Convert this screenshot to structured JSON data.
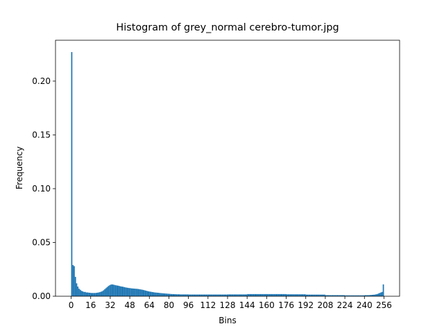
{
  "chart_data": {
    "type": "histogram",
    "title": "Histogram of grey_normal cerebro-tumor.jpg",
    "x_label": "Bins",
    "y_label": "Frequency",
    "color": "#1f77b4",
    "bins": [
      0,
      1,
      2,
      3,
      4,
      5,
      6,
      7,
      8,
      9,
      10,
      11,
      12,
      13,
      14,
      15,
      16,
      17,
      18,
      19,
      20,
      21,
      22,
      23,
      24,
      25,
      26,
      27,
      28,
      29,
      30,
      31,
      32,
      33,
      34,
      35,
      36,
      37,
      38,
      39,
      40,
      41,
      42,
      43,
      44,
      45,
      46,
      47,
      48,
      49,
      50,
      51,
      52,
      53,
      54,
      55,
      56,
      57,
      58,
      59,
      60,
      61,
      62,
      63,
      64,
      65,
      66,
      67,
      68,
      69,
      70,
      71,
      72,
      73,
      74,
      75,
      76,
      77,
      78,
      79,
      80,
      81,
      82,
      83,
      84,
      85,
      86,
      87,
      88,
      89,
      90,
      91,
      92,
      93,
      94,
      95,
      96,
      97,
      98,
      99,
      100,
      101,
      102,
      103,
      104,
      105,
      106,
      107,
      108,
      109,
      110,
      111,
      112,
      113,
      114,
      115,
      116,
      117,
      118,
      119,
      120,
      121,
      122,
      123,
      124,
      125,
      126,
      127,
      128,
      129,
      130,
      131,
      132,
      133,
      134,
      135,
      136,
      137,
      138,
      139,
      140,
      141,
      142,
      143,
      144,
      145,
      146,
      147,
      148,
      149,
      150,
      151,
      152,
      153,
      154,
      155,
      156,
      157,
      158,
      159,
      160,
      161,
      162,
      163,
      164,
      165,
      166,
      167,
      168,
      169,
      170,
      171,
      172,
      173,
      174,
      175,
      176,
      177,
      178,
      179,
      180,
      181,
      182,
      183,
      184,
      185,
      186,
      187,
      188,
      189,
      190,
      191,
      192,
      193,
      194,
      195,
      196,
      197,
      198,
      199,
      200,
      201,
      202,
      203,
      204,
      205,
      206,
      207,
      208,
      209,
      210,
      211,
      212,
      213,
      214,
      215,
      216,
      217,
      218,
      219,
      220,
      221,
      222,
      223,
      224,
      225,
      226,
      227,
      228,
      229,
      230,
      231,
      232,
      233,
      234,
      235,
      236,
      237,
      238,
      239,
      240,
      241,
      242,
      243,
      244,
      245,
      246,
      247,
      248,
      249,
      250,
      251,
      252,
      253,
      254,
      255,
      256
    ],
    "values": [
      0.227,
      0.029,
      0.028,
      0.018,
      0.012,
      0.009,
      0.007,
      0.006,
      0.005,
      0.0045,
      0.004,
      0.004,
      0.0035,
      0.0035,
      0.0033,
      0.0032,
      0.003,
      0.003,
      0.003,
      0.003,
      0.0031,
      0.0033,
      0.0035,
      0.0038,
      0.0042,
      0.0047,
      0.0055,
      0.0065,
      0.0075,
      0.0085,
      0.0095,
      0.0102,
      0.0108,
      0.011,
      0.0108,
      0.0105,
      0.0102,
      0.01,
      0.0098,
      0.0095,
      0.0092,
      0.009,
      0.0088,
      0.0085,
      0.0082,
      0.008,
      0.0078,
      0.0076,
      0.0075,
      0.0073,
      0.0072,
      0.0071,
      0.007,
      0.0069,
      0.0068,
      0.0066,
      0.0064,
      0.0062,
      0.006,
      0.0057,
      0.0054,
      0.0051,
      0.0048,
      0.0045,
      0.0043,
      0.0041,
      0.0039,
      0.0037,
      0.0035,
      0.0034,
      0.0033,
      0.0032,
      0.003,
      0.0029,
      0.0028,
      0.0027,
      0.0026,
      0.0025,
      0.0024,
      0.0023,
      0.0022,
      0.0021,
      0.002,
      0.002,
      0.0019,
      0.0019,
      0.0018,
      0.0018,
      0.0018,
      0.0017,
      0.0017,
      0.0017,
      0.0017,
      0.0017,
      0.0017,
      0.0017,
      0.0016,
      0.0016,
      0.0016,
      0.0016,
      0.0016,
      0.0016,
      0.0016,
      0.0016,
      0.0016,
      0.0016,
      0.0016,
      0.0016,
      0.0016,
      0.0016,
      0.0016,
      0.0016,
      0.0016,
      0.0016,
      0.0016,
      0.0016,
      0.0016,
      0.0016,
      0.0016,
      0.0016,
      0.0016,
      0.0016,
      0.0016,
      0.0016,
      0.0016,
      0.0016,
      0.0016,
      0.0016,
      0.0017,
      0.0017,
      0.0017,
      0.0017,
      0.0017,
      0.0017,
      0.0017,
      0.0017,
      0.0017,
      0.0017,
      0.0017,
      0.0017,
      0.0017,
      0.0017,
      0.0017,
      0.0017,
      0.002,
      0.002,
      0.002,
      0.002,
      0.002,
      0.002,
      0.002,
      0.002,
      0.002,
      0.002,
      0.002,
      0.002,
      0.002,
      0.002,
      0.002,
      0.002,
      0.002,
      0.002,
      0.002,
      0.002,
      0.002,
      0.002,
      0.002,
      0.002,
      0.002,
      0.002,
      0.002,
      0.002,
      0.002,
      0.002,
      0.002,
      0.002,
      0.0018,
      0.0018,
      0.0018,
      0.0018,
      0.0018,
      0.0018,
      0.0018,
      0.0018,
      0.0018,
      0.0018,
      0.0018,
      0.0018,
      0.0018,
      0.0018,
      0.0018,
      0.0018,
      0.0015,
      0.0015,
      0.0015,
      0.0015,
      0.0015,
      0.0015,
      0.0015,
      0.0015,
      0.0015,
      0.0015,
      0.0015,
      0.0015,
      0.0015,
      0.0015,
      0.0015,
      0.0015,
      0.001,
      0.001,
      0.001,
      0.001,
      0.001,
      0.001,
      0.001,
      0.001,
      0.001,
      0.001,
      0.001,
      0.001,
      0.001,
      0.001,
      0.001,
      0.001,
      0.0008,
      0.0008,
      0.0008,
      0.0008,
      0.0008,
      0.0008,
      0.0008,
      0.0008,
      0.0008,
      0.0008,
      0.0008,
      0.0008,
      0.0008,
      0.0008,
      0.0008,
      0.0008,
      0.001,
      0.001,
      0.001,
      0.001,
      0.0011,
      0.0012,
      0.0013,
      0.0014,
      0.0015,
      0.0018,
      0.002,
      0.0025,
      0.003,
      0.0035,
      0.004,
      0.011
    ],
    "xlim": [
      -12.8,
      268.8
    ],
    "xticks": [
      0,
      16,
      32,
      48,
      64,
      80,
      96,
      112,
      128,
      144,
      160,
      176,
      192,
      208,
      224,
      240,
      256
    ],
    "ylim": [
      0,
      0.238
    ],
    "yticks": [
      {
        "value": 0,
        "label": "0.00"
      },
      {
        "value": 0.05,
        "label": "0.05"
      },
      {
        "value": 0.1,
        "label": "0.10"
      },
      {
        "value": 0.15,
        "label": "0.15"
      },
      {
        "value": 0.2,
        "label": "0.20"
      }
    ]
  }
}
